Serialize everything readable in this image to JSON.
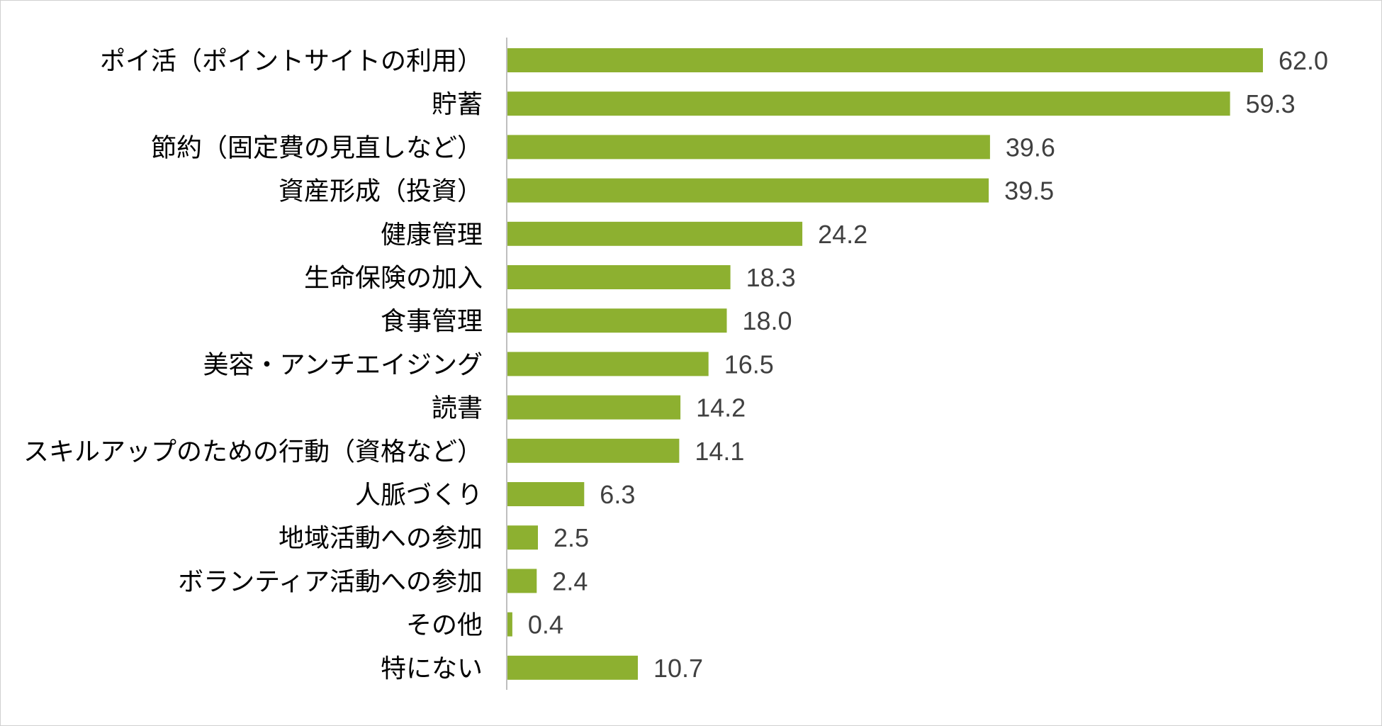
{
  "chart_data": {
    "type": "bar",
    "orientation": "horizontal",
    "title": "",
    "xlabel": "",
    "ylabel": "",
    "xlim": [
      0,
      62
    ],
    "grid": false,
    "legend": "none",
    "bar_color": "#8db030",
    "axis_color": "#bfbfbf",
    "categories": [
      "ポイ活（ポイントサイトの利用）",
      "貯蓄",
      "節約（固定費の見直しなど）",
      "資産形成（投資）",
      "健康管理",
      "生命保険の加入",
      "食事管理",
      "美容・アンチエイジング",
      "読書",
      "スキルアップのための行動（資格など）",
      "人脈づくり",
      "地域活動への参加",
      "ボランティア活動への参加",
      "その他",
      "特にない"
    ],
    "values": [
      62.0,
      59.3,
      39.6,
      39.5,
      24.2,
      18.3,
      18.0,
      16.5,
      14.2,
      14.1,
      6.3,
      2.5,
      2.4,
      0.4,
      10.7
    ],
    "value_labels": [
      "62.0",
      "59.3",
      "39.6",
      "39.5",
      "24.2",
      "18.3",
      "18.0",
      "16.5",
      "14.2",
      "14.1",
      "6.3",
      "2.5",
      "2.4",
      "0.4",
      "10.7"
    ]
  }
}
